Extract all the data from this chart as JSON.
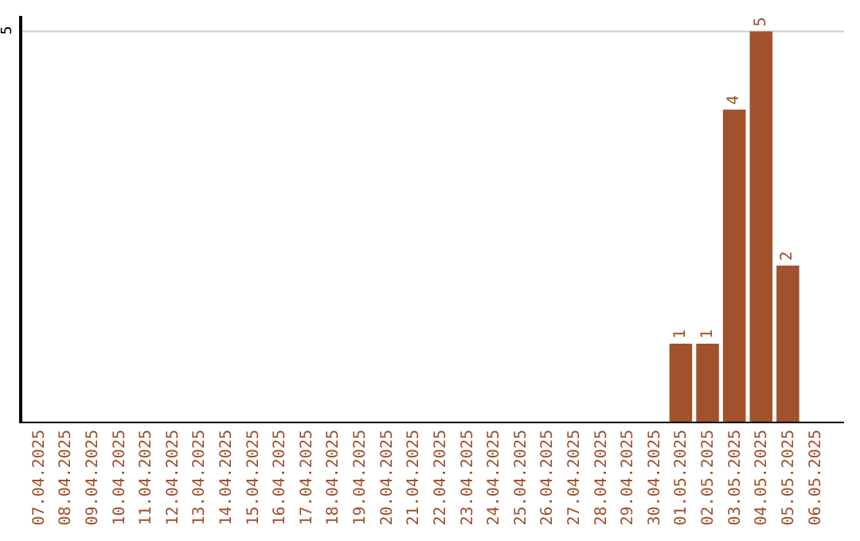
{
  "chart_data": {
    "type": "bar",
    "categories": [
      "07.04.2025",
      "08.04.2025",
      "09.04.2025",
      "10.04.2025",
      "11.04.2025",
      "12.04.2025",
      "13.04.2025",
      "14.04.2025",
      "15.04.2025",
      "16.04.2025",
      "17.04.2025",
      "18.04.2025",
      "19.04.2025",
      "20.04.2025",
      "21.04.2025",
      "22.04.2025",
      "23.04.2025",
      "24.04.2025",
      "25.04.2025",
      "26.04.2025",
      "27.04.2025",
      "28.04.2025",
      "29.04.2025",
      "30.04.2025",
      "01.05.2025",
      "02.05.2025",
      "03.05.2025",
      "04.05.2025",
      "05.05.2025",
      "06.05.2025"
    ],
    "values": [
      null,
      null,
      null,
      null,
      null,
      null,
      null,
      null,
      null,
      null,
      null,
      null,
      null,
      null,
      null,
      null,
      null,
      null,
      null,
      null,
      null,
      null,
      null,
      null,
      1,
      1,
      4,
      5,
      2,
      null
    ],
    "data_labels": true,
    "color": "#a0522d",
    "ylim": [
      0,
      5.2
    ],
    "ref_lines": [
      {
        "axis": "y",
        "value": 5,
        "label": "5",
        "color": "#cccccc"
      }
    ],
    "legend": false
  }
}
